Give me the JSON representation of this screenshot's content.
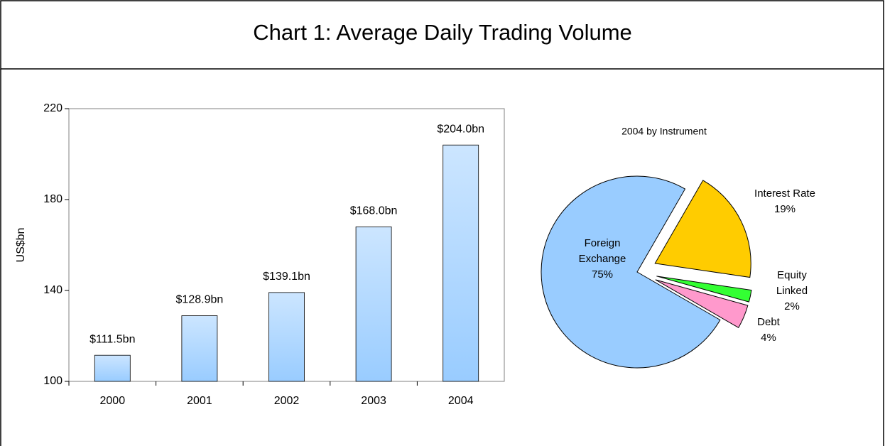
{
  "title": "Chart 1: Average Daily Trading Volume",
  "chart_data": [
    {
      "type": "bar",
      "ylabel": "US$bn",
      "categories": [
        "2000",
        "2001",
        "2002",
        "2003",
        "2004"
      ],
      "values": [
        111.5,
        128.9,
        139.1,
        168.0,
        204.0
      ],
      "value_labels": [
        "$111.5bn",
        "$128.9bn",
        "$139.1bn",
        "$168.0bn",
        "$204.0bn"
      ],
      "color": "#99ccff",
      "ylim": [
        100,
        220
      ],
      "yticks": [
        100,
        140,
        180,
        220
      ],
      "grid": false
    },
    {
      "type": "pie",
      "title": "2004 by Instrument",
      "categories": [
        "Foreign Exchange",
        "Interest Rate",
        "Equity Linked",
        "Debt"
      ],
      "values": [
        75,
        19,
        2,
        4
      ],
      "value_labels": [
        "75%",
        "19%",
        "2%",
        "4%"
      ],
      "colors": [
        "#99ccff",
        "#ffcc00",
        "#33ff33",
        "#ff99cc"
      ]
    }
  ]
}
